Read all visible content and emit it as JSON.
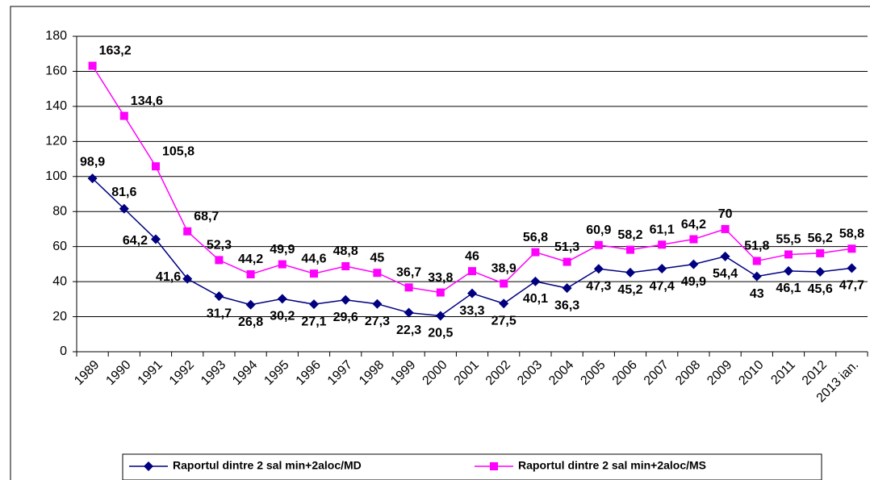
{
  "chart_data": {
    "type": "line",
    "categories": [
      "1989",
      "1990",
      "1991",
      "1992",
      "1993",
      "1994",
      "1995",
      "1996",
      "1997",
      "1998",
      "1999",
      "2000",
      "2001",
      "2002",
      "2003",
      "2004",
      "2005",
      "2006",
      "2007",
      "2008",
      "2009",
      "2010",
      "2011",
      "2012",
      "2013 ian."
    ],
    "series": [
      {
        "name": "Raportul dintre 2 sal min+2aloc/MD",
        "color": "#000080",
        "marker": "diamond",
        "values": [
          98.9,
          81.6,
          64.2,
          41.6,
          31.7,
          26.8,
          30.2,
          27.1,
          29.6,
          27.3,
          22.3,
          20.5,
          33.3,
          27.5,
          40.1,
          36.3,
          47.3,
          45.2,
          47.4,
          49.9,
          54.4,
          43,
          46.1,
          45.6,
          47.7
        ],
        "value_labels": [
          "98,9",
          "81,6",
          "64,2",
          "41,6",
          "31,7",
          "26,8",
          "30,2",
          "27,1",
          "29,6",
          "27,3",
          "22,3",
          "20,5",
          "33,3",
          "27,5",
          "40,1",
          "36,3",
          "47,3",
          "45,2",
          "47,4",
          "49,9",
          "54,4",
          "43",
          "46,1",
          "45,6",
          "47,7"
        ]
      },
      {
        "name": "Raportul dintre 2 sal min+2aloc/MS",
        "color": "#ff00ff",
        "marker": "square",
        "values": [
          163.2,
          134.6,
          105.8,
          68.7,
          52.3,
          44.2,
          49.9,
          44.6,
          48.8,
          45,
          36.7,
          33.8,
          46,
          38.9,
          56.8,
          51.3,
          60.9,
          58.2,
          61.1,
          64.2,
          70,
          51.8,
          55.5,
          56.2,
          58.8
        ],
        "value_labels": [
          "163,2",
          "134,6",
          "105,8",
          "68,7",
          "52,3",
          "44,2",
          "49,9",
          "44,6",
          "48,8",
          "45",
          "36,7",
          "33,8",
          "46",
          "38,9",
          "56,8",
          "51,3",
          "60,9",
          "58,2",
          "61,1",
          "64,2",
          "70",
          "51,8",
          "55,5",
          "56,2",
          "58,8"
        ]
      }
    ],
    "ylim": [
      0,
      180
    ],
    "yticks": [
      0,
      20,
      40,
      60,
      80,
      100,
      120,
      140,
      160,
      180
    ],
    "grid": true
  }
}
